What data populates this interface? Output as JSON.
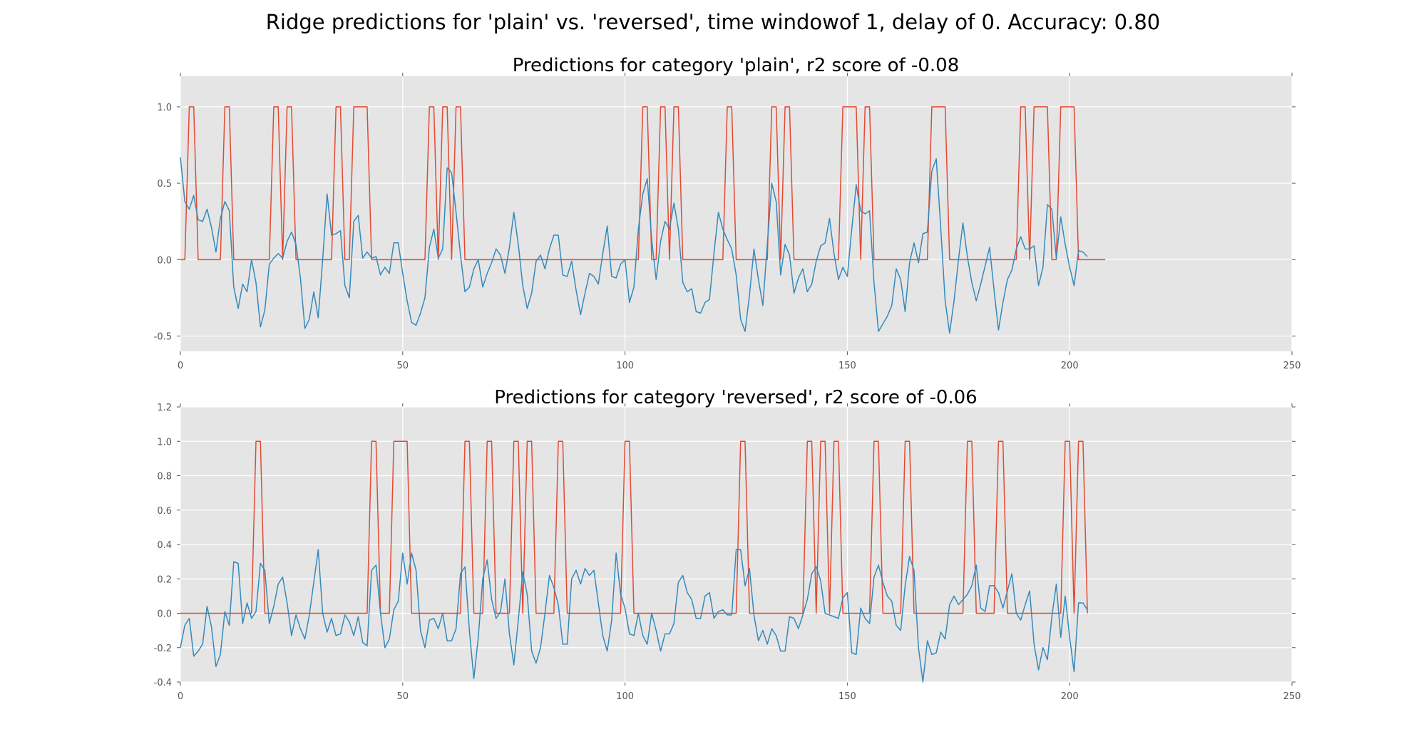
{
  "figure": {
    "suptitle": "Ridge predictions for 'plain' vs. 'reversed', time windowof 1, delay of 0. Accuracy: 0.80"
  },
  "colors": {
    "background": "#e5e5e5",
    "grid": "#ffffff",
    "truth": "#e24a33",
    "prediction": "#348abd"
  },
  "chart_data": [
    {
      "type": "line",
      "title": "Predictions for category 'plain', r2 score of -0.08",
      "xlim": [
        0,
        250
      ],
      "ylim": [
        -0.6,
        1.2
      ],
      "xticks": [
        "0",
        "50",
        "100",
        "150",
        "200",
        "250"
      ],
      "yticks": [
        "-0.5",
        "0.0",
        "0.5",
        "1.0"
      ],
      "ytick_values": [
        -0.5,
        0.0,
        0.5,
        1.0
      ],
      "grid": true,
      "series": [
        {
          "color": "#e24a33",
          "values": [
            0,
            0,
            1,
            1,
            0,
            0,
            0,
            0,
            0,
            0,
            1,
            1,
            0,
            0,
            0,
            0,
            0,
            0,
            0,
            0,
            0,
            1,
            1,
            0,
            1,
            1,
            0,
            0,
            0,
            0,
            0,
            0,
            0,
            0,
            0,
            1,
            1,
            0,
            0,
            1,
            1,
            1,
            1,
            0,
            0,
            0,
            0,
            0,
            0,
            0,
            0,
            0,
            0,
            0,
            0,
            0,
            1,
            1,
            0,
            1,
            1,
            0,
            1,
            1,
            0,
            0,
            0,
            0,
            0,
            0,
            0,
            0,
            0,
            0,
            0,
            0,
            0,
            0,
            0,
            0,
            0,
            0,
            0,
            0,
            0,
            0,
            0,
            0,
            0,
            0,
            0,
            0,
            0,
            0,
            0,
            0,
            0,
            0,
            0,
            0,
            0,
            0,
            0,
            0,
            1,
            1,
            0,
            0,
            1,
            1,
            0,
            1,
            1,
            0,
            0,
            0,
            0,
            0,
            0,
            0,
            0,
            0,
            0,
            1,
            1,
            0,
            0,
            0,
            0,
            0,
            0,
            0,
            0,
            1,
            1,
            0,
            1,
            1,
            0,
            0,
            0,
            0,
            0,
            0,
            0,
            0,
            0,
            0,
            0,
            1,
            1,
            1,
            1,
            0,
            1,
            1,
            0,
            0,
            0,
            0,
            0,
            0,
            0,
            0,
            0,
            0,
            0,
            0,
            0,
            1,
            1,
            1,
            1,
            0,
            0,
            0,
            0,
            0,
            0,
            0,
            0,
            0,
            0,
            0,
            0,
            0,
            0,
            0,
            0,
            1,
            1,
            0,
            1,
            1,
            1,
            1,
            0,
            0,
            1,
            1,
            1,
            1,
            0,
            0,
            0,
            0,
            0,
            0,
            0
          ]
        },
        {
          "color": "#348abd",
          "values": [
            0.67,
            0.38,
            0.33,
            0.42,
            0.26,
            0.25,
            0.33,
            0.21,
            0.05,
            0.27,
            0.38,
            0.32,
            -0.18,
            -0.32,
            -0.16,
            -0.21,
            0.0,
            -0.15,
            -0.44,
            -0.33,
            -0.03,
            0.01,
            0.04,
            0.01,
            0.12,
            0.18,
            0.1,
            -0.12,
            -0.45,
            -0.39,
            -0.21,
            -0.38,
            0.0,
            0.43,
            0.16,
            0.17,
            0.19,
            -0.17,
            -0.25,
            0.25,
            0.29,
            0.01,
            0.05,
            0.01,
            0.02,
            -0.1,
            -0.05,
            -0.09,
            0.11,
            0.11,
            -0.09,
            -0.27,
            -0.41,
            -0.43,
            -0.35,
            -0.25,
            0.08,
            0.2,
            0.01,
            0.07,
            0.6,
            0.57,
            0.31,
            0.03,
            -0.21,
            -0.18,
            -0.06,
            0.0,
            -0.18,
            -0.09,
            -0.02,
            0.07,
            0.03,
            -0.09,
            0.08,
            0.31,
            0.1,
            -0.17,
            -0.32,
            -0.22,
            -0.01,
            0.03,
            -0.06,
            0.07,
            0.16,
            0.16,
            -0.1,
            -0.11,
            -0.01,
            -0.2,
            -0.36,
            -0.22,
            -0.09,
            -0.11,
            -0.16,
            0.04,
            0.22,
            -0.11,
            -0.12,
            -0.03,
            0.0,
            -0.28,
            -0.18,
            0.2,
            0.43,
            0.53,
            0.13,
            -0.13,
            0.12,
            0.25,
            0.2,
            0.37,
            0.2,
            -0.15,
            -0.21,
            -0.19,
            -0.34,
            -0.35,
            -0.28,
            -0.26,
            0.04,
            0.31,
            0.2,
            0.13,
            0.07,
            -0.1,
            -0.39,
            -0.47,
            -0.23,
            0.07,
            -0.13,
            -0.3,
            0.1,
            0.5,
            0.38,
            -0.1,
            0.1,
            0.03,
            -0.22,
            -0.12,
            -0.06,
            -0.21,
            -0.16,
            -0.01,
            0.09,
            0.11,
            0.27,
            0.04,
            -0.13,
            -0.05,
            -0.11,
            0.2,
            0.49,
            0.32,
            0.3,
            0.32,
            -0.15,
            -0.47,
            -0.42,
            -0.37,
            -0.3,
            -0.06,
            -0.13,
            -0.34,
            -0.02,
            0.11,
            -0.02,
            0.17,
            0.18,
            0.58,
            0.66,
            0.21,
            -0.27,
            -0.48,
            -0.27,
            0.0,
            0.24,
            0.02,
            -0.15,
            -0.27,
            -0.16,
            -0.04,
            0.08,
            -0.2,
            -0.46,
            -0.28,
            -0.13,
            -0.07,
            0.07,
            0.15,
            0.07,
            0.07,
            0.09,
            -0.17,
            -0.05,
            0.36,
            0.33,
            0.01,
            0.28,
            0.1,
            -0.05,
            -0.17,
            0.06,
            0.05,
            0.02
          ]
        }
      ]
    },
    {
      "type": "line",
      "title": "Predictions for category 'reversed', r2 score of -0.06",
      "xlim": [
        0,
        250
      ],
      "ylim": [
        -0.4,
        1.2
      ],
      "xticks": [
        "0",
        "50",
        "100",
        "150",
        "200",
        "250"
      ],
      "yticks": [
        "-0.4",
        "-0.2",
        "0.0",
        "0.2",
        "0.4",
        "0.6",
        "0.8",
        "1.0",
        "1.2"
      ],
      "ytick_values": [
        -0.4,
        -0.2,
        0.0,
        0.2,
        0.4,
        0.6,
        0.8,
        1.0,
        1.2
      ],
      "grid": true,
      "series": [
        {
          "color": "#e24a33",
          "values": [
            0,
            0,
            0,
            0,
            0,
            0,
            0,
            0,
            0,
            0,
            0,
            0,
            0,
            0,
            0,
            0,
            0,
            1,
            1,
            0,
            0,
            0,
            0,
            0,
            0,
            0,
            0,
            0,
            0,
            0,
            0,
            0,
            0,
            0,
            0,
            0,
            0,
            0,
            0,
            0,
            0,
            0,
            0,
            1,
            1,
            0,
            0,
            0,
            1,
            1,
            1,
            1,
            0,
            0,
            0,
            0,
            0,
            0,
            0,
            0,
            0,
            0,
            0,
            0,
            1,
            1,
            0,
            0,
            0,
            1,
            1,
            0,
            0,
            0,
            0,
            1,
            1,
            0,
            1,
            1,
            0,
            0,
            0,
            0,
            0,
            1,
            1,
            0,
            0,
            0,
            0,
            0,
            0,
            0,
            0,
            0,
            0,
            0,
            0,
            0,
            1,
            1,
            0,
            0,
            0,
            0,
            0,
            0,
            0,
            0,
            0,
            0,
            0,
            0,
            0,
            0,
            0,
            0,
            0,
            0,
            0,
            0,
            0,
            0,
            0,
            0,
            1,
            1,
            0,
            0,
            0,
            0,
            0,
            0,
            0,
            0,
            0,
            0,
            0,
            0,
            0,
            1,
            1,
            0,
            1,
            1,
            0,
            1,
            1,
            0,
            0,
            0,
            0,
            0,
            0,
            0,
            1,
            1,
            0,
            0,
            0,
            0,
            0,
            1,
            1,
            0,
            0,
            0,
            0,
            0,
            0,
            0,
            0,
            0,
            0,
            0,
            0,
            1,
            1,
            0,
            0,
            0,
            0,
            0,
            1,
            1,
            0,
            0,
            0,
            0,
            0,
            0,
            0,
            0,
            0,
            0,
            0,
            0,
            0,
            1,
            1,
            0,
            1,
            1,
            0
          ]
        },
        {
          "color": "#348abd",
          "values": [
            -0.2,
            -0.07,
            -0.03,
            -0.25,
            -0.22,
            -0.18,
            0.04,
            -0.08,
            -0.31,
            -0.24,
            0.01,
            -0.07,
            0.3,
            0.29,
            -0.06,
            0.06,
            -0.03,
            0.01,
            0.29,
            0.25,
            -0.06,
            0.04,
            0.17,
            0.21,
            0.06,
            -0.13,
            -0.01,
            -0.09,
            -0.15,
            -0.01,
            0.18,
            0.37,
            0.0,
            -0.11,
            -0.03,
            -0.13,
            -0.12,
            -0.01,
            -0.05,
            -0.13,
            -0.02,
            -0.17,
            -0.19,
            0.25,
            0.28,
            0.0,
            -0.2,
            -0.15,
            0.02,
            0.07,
            0.35,
            0.17,
            0.35,
            0.25,
            -0.1,
            -0.2,
            -0.04,
            -0.03,
            -0.09,
            0.0,
            -0.16,
            -0.16,
            -0.09,
            0.23,
            0.27,
            -0.1,
            -0.38,
            -0.14,
            0.2,
            0.31,
            0.08,
            -0.03,
            0.01,
            0.2,
            -0.12,
            -0.3,
            -0.04,
            0.24,
            0.11,
            -0.22,
            -0.29,
            -0.2,
            0.0,
            0.22,
            0.15,
            0.05,
            -0.18,
            -0.18,
            0.2,
            0.25,
            0.17,
            0.26,
            0.22,
            0.25,
            0.06,
            -0.13,
            -0.22,
            -0.04,
            0.35,
            0.11,
            0.03,
            -0.12,
            -0.13,
            0.0,
            -0.13,
            -0.18,
            0.0,
            -0.1,
            -0.22,
            -0.12,
            -0.12,
            -0.06,
            0.18,
            0.22,
            0.12,
            0.08,
            -0.03,
            -0.03,
            0.1,
            0.12,
            -0.03,
            0.01,
            0.02,
            -0.01,
            -0.01,
            0.37,
            0.37,
            0.16,
            0.26,
            -0.01,
            -0.16,
            -0.1,
            -0.18,
            -0.09,
            -0.13,
            -0.22,
            -0.22,
            -0.02,
            -0.03,
            -0.09,
            -0.01,
            0.08,
            0.23,
            0.27,
            0.19,
            0.0,
            -0.01,
            -0.02,
            -0.03,
            0.09,
            0.12,
            -0.23,
            -0.24,
            0.03,
            -0.03,
            -0.06,
            0.21,
            0.28,
            0.18,
            0.1,
            0.07,
            -0.07,
            -0.1,
            0.16,
            0.33,
            0.25,
            -0.2,
            -0.4,
            -0.16,
            -0.24,
            -0.23,
            -0.11,
            -0.15,
            0.05,
            0.1,
            0.05,
            0.08,
            0.11,
            0.16,
            0.28,
            0.03,
            0.01,
            0.16,
            0.16,
            0.12,
            0.03,
            0.13,
            0.23,
            0.0,
            -0.04,
            0.05,
            0.13,
            -0.18,
            -0.33,
            -0.2,
            -0.27,
            -0.02,
            0.17,
            -0.14,
            0.1,
            -0.14,
            -0.34,
            0.06,
            0.06,
            0.02
          ]
        }
      ]
    }
  ]
}
